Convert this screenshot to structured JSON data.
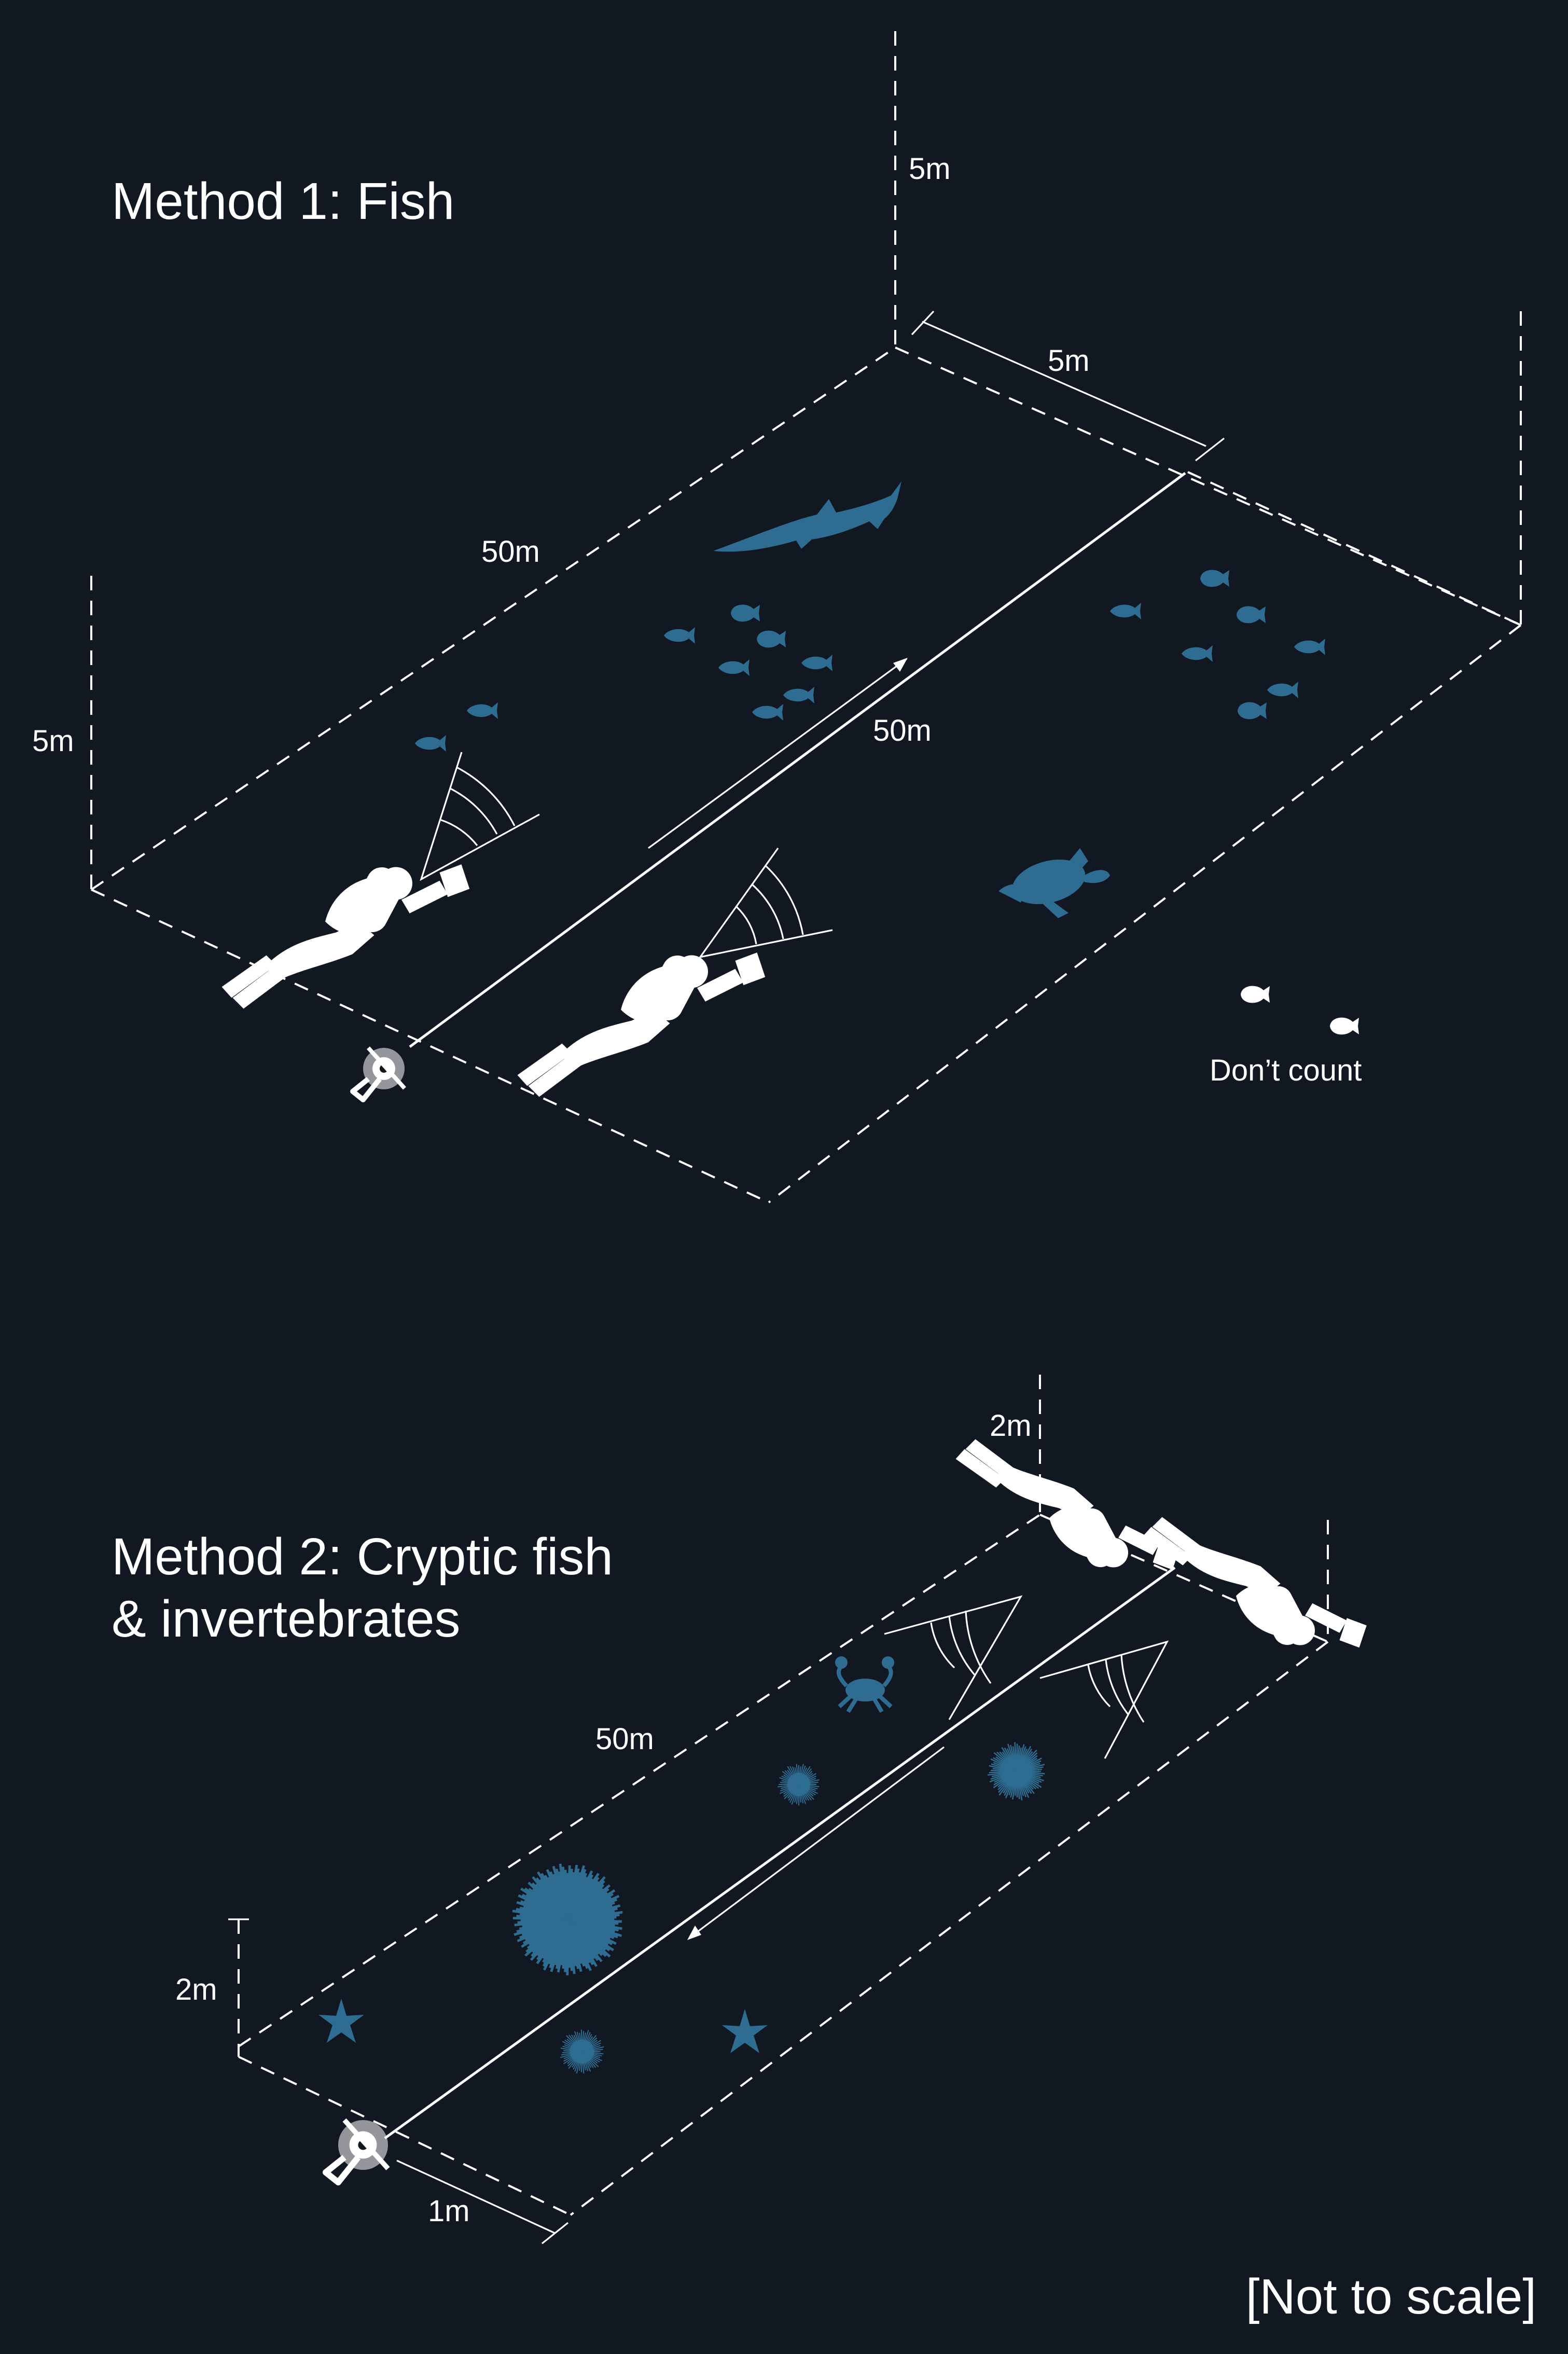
{
  "method1": {
    "title": "Method 1: Fish",
    "labels": {
      "height_top": "5m",
      "height_left": "5m",
      "width": "5m",
      "length_outer": "50m",
      "length_transect": "50m",
      "dont_count": "Don’t count"
    }
  },
  "method2": {
    "title_line1": "Method 2: Cryptic fish",
    "title_line2": "& invertebrates",
    "labels": {
      "height_top": "2m",
      "height_left": "2m",
      "length": "50m",
      "width": "1m"
    }
  },
  "footer": {
    "note": "[Not to scale]"
  },
  "colors": {
    "background": "#121822",
    "creatures": "#2f6c92",
    "lines": "#ffffff"
  },
  "icons": {
    "fish": "fish-icon",
    "shark": "shark-icon",
    "turtle": "turtle-icon",
    "diver": "scuba-diver-icon",
    "reel": "tape-reel-icon",
    "urchin": "sea-urchin-icon",
    "starfish": "starfish-icon",
    "crab": "crab-icon"
  }
}
